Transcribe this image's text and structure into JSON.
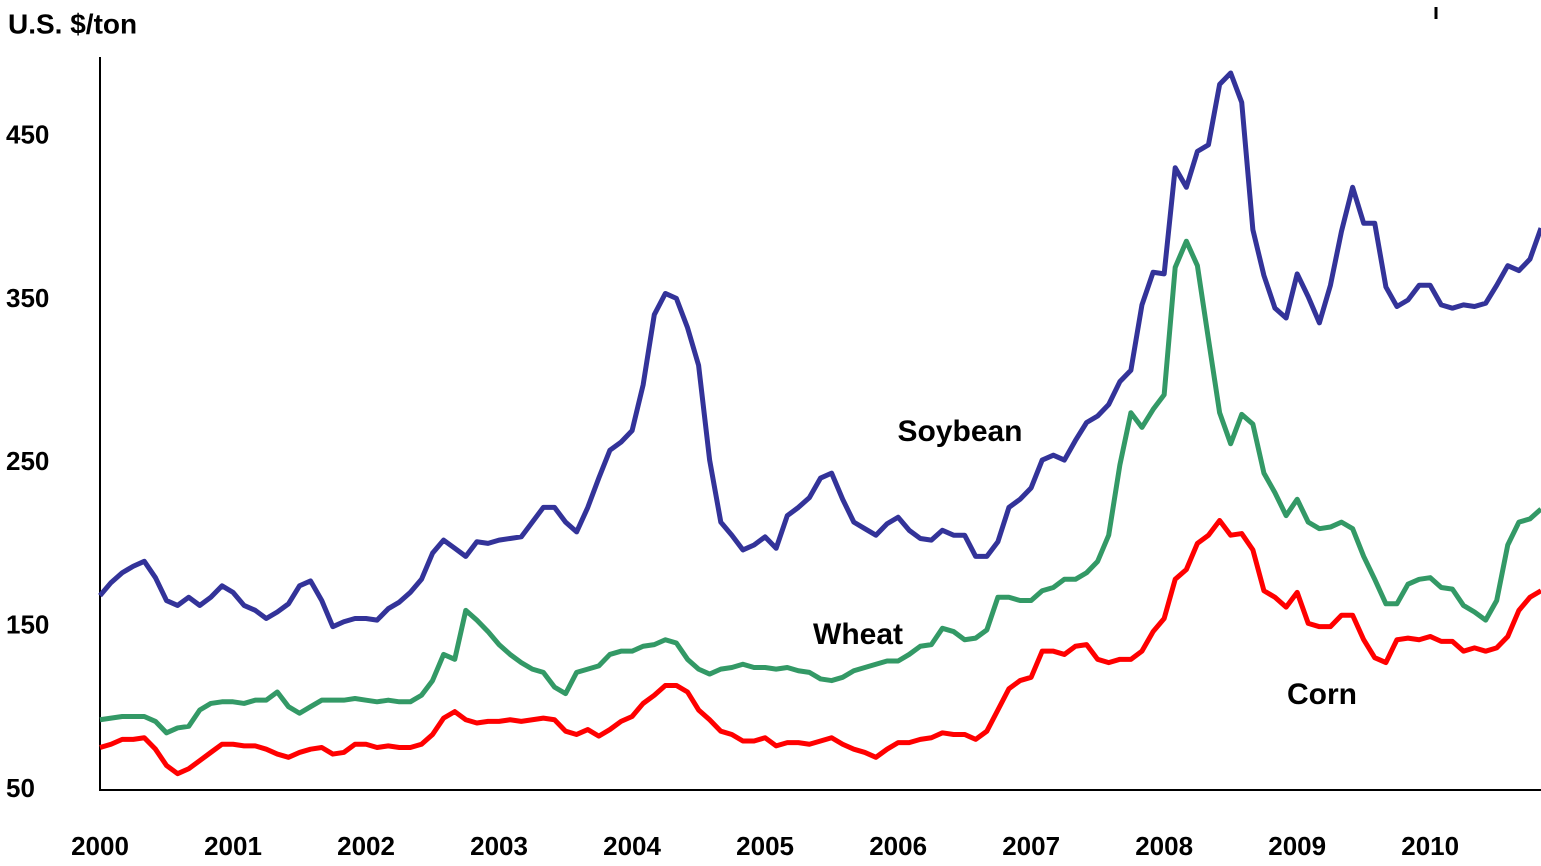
{
  "chart_data": {
    "type": "line",
    "ylabel": "U.S. $/ton",
    "x": [
      2000,
      2000.083,
      2000.167,
      2000.25,
      2000.333,
      2000.417,
      2000.5,
      2000.583,
      2000.667,
      2000.75,
      2000.833,
      2000.917,
      2001,
      2001.083,
      2001.167,
      2001.25,
      2001.333,
      2001.417,
      2001.5,
      2001.583,
      2001.667,
      2001.75,
      2001.833,
      2001.917,
      2002,
      2002.083,
      2002.167,
      2002.25,
      2002.333,
      2002.417,
      2002.5,
      2002.583,
      2002.667,
      2002.75,
      2002.833,
      2002.917,
      2003,
      2003.083,
      2003.167,
      2003.25,
      2003.333,
      2003.417,
      2003.5,
      2003.583,
      2003.667,
      2003.75,
      2003.833,
      2003.917,
      2004,
      2004.083,
      2004.167,
      2004.25,
      2004.333,
      2004.417,
      2004.5,
      2004.583,
      2004.667,
      2004.75,
      2004.833,
      2004.917,
      2005,
      2005.083,
      2005.167,
      2005.25,
      2005.333,
      2005.417,
      2005.5,
      2005.583,
      2005.667,
      2005.75,
      2005.833,
      2005.917,
      2006,
      2006.083,
      2006.167,
      2006.25,
      2006.333,
      2006.417,
      2006.5,
      2006.583,
      2006.667,
      2006.75,
      2006.833,
      2006.917,
      2007,
      2007.083,
      2007.167,
      2007.25,
      2007.333,
      2007.417,
      2007.5,
      2007.583,
      2007.667,
      2007.75,
      2007.833,
      2007.917,
      2008,
      2008.083,
      2008.167,
      2008.25,
      2008.333,
      2008.417,
      2008.5,
      2008.583,
      2008.667,
      2008.75,
      2008.833,
      2008.917,
      2009,
      2009.083,
      2009.167,
      2009.25,
      2009.333,
      2009.417,
      2009.5,
      2009.583,
      2009.667,
      2009.75,
      2009.833,
      2009.917,
      2010,
      2010.083,
      2010.167,
      2010.25,
      2010.333,
      2010.417,
      2010.5,
      2010.583,
      2010.667,
      2010.75,
      2010.833
    ],
    "series": [
      {
        "name": "Soybean",
        "color": "#333399",
        "values": [
          169,
          177,
          183,
          187,
          190,
          180,
          166,
          163,
          168,
          163,
          168,
          175,
          171,
          163,
          160,
          155,
          159,
          164,
          175,
          178,
          166,
          150,
          153,
          155,
          155,
          154,
          161,
          165,
          171,
          179,
          195,
          203,
          198,
          193,
          202,
          201,
          203,
          204,
          205,
          214,
          223,
          223,
          214,
          208,
          223,
          241,
          258,
          263,
          270,
          298,
          341,
          354,
          351,
          333,
          310,
          252,
          214,
          206,
          197,
          200,
          205,
          198,
          218,
          223,
          229,
          241,
          244,
          228,
          214,
          210,
          206,
          213,
          217,
          209,
          204,
          203,
          209,
          206,
          206,
          193,
          193,
          202,
          223,
          228,
          235,
          252,
          255,
          252,
          264,
          275,
          279,
          286,
          300,
          307,
          347,
          367,
          366,
          431,
          419,
          441,
          445,
          482,
          489,
          471,
          393,
          365,
          345,
          339,
          366,
          352,
          336,
          359,
          392,
          419,
          397,
          397,
          358,
          346,
          350,
          359,
          359,
          347,
          345,
          347,
          346,
          348,
          359,
          371,
          368,
          375,
          394
        ]
      },
      {
        "name": "Wheat",
        "color": "#339966",
        "values": [
          93,
          94,
          95,
          95,
          95,
          92,
          85,
          88,
          89,
          99,
          103,
          104,
          104,
          103,
          105,
          105,
          110,
          101,
          97,
          101,
          105,
          105,
          105,
          106,
          105,
          104,
          105,
          104,
          104,
          108,
          117,
          133,
          130,
          160,
          154,
          147,
          139,
          133,
          128,
          124,
          122,
          113,
          109,
          122,
          124,
          126,
          133,
          135,
          135,
          138,
          139,
          142,
          140,
          130,
          124,
          121,
          124,
          125,
          127,
          125,
          125,
          124,
          125,
          123,
          122,
          118,
          117,
          119,
          123,
          125,
          127,
          129,
          129,
          133,
          138,
          139,
          149,
          147,
          142,
          143,
          148,
          168,
          168,
          166,
          166,
          172,
          174,
          179,
          179,
          183,
          190,
          206,
          249,
          281,
          272,
          283,
          292,
          370,
          386,
          371,
          326,
          281,
          262,
          280,
          274,
          244,
          232,
          218,
          228,
          214,
          210,
          211,
          214,
          210,
          193,
          179,
          164,
          164,
          176,
          179,
          180,
          174,
          173,
          163,
          159,
          154,
          166,
          200,
          214,
          216,
          222
        ]
      },
      {
        "name": "Corn",
        "color": "#ff0000",
        "values": [
          76,
          78,
          81,
          81,
          82,
          75,
          65,
          60,
          63,
          68,
          73,
          78,
          78,
          77,
          77,
          75,
          72,
          70,
          73,
          75,
          76,
          72,
          73,
          78,
          78,
          76,
          77,
          76,
          76,
          78,
          84,
          94,
          98,
          93,
          91,
          92,
          92,
          93,
          92,
          93,
          94,
          93,
          86,
          84,
          87,
          83,
          87,
          92,
          95,
          103,
          108,
          114,
          114,
          110,
          99,
          93,
          86,
          84,
          80,
          80,
          82,
          77,
          79,
          79,
          78,
          80,
          82,
          78,
          75,
          73,
          70,
          75,
          79,
          79,
          81,
          82,
          85,
          84,
          84,
          81,
          86,
          99,
          112,
          117,
          119,
          135,
          135,
          133,
          138,
          139,
          130,
          128,
          130,
          130,
          135,
          147,
          155,
          179,
          185,
          201,
          206,
          215,
          206,
          207,
          197,
          172,
          168,
          162,
          171,
          152,
          150,
          150,
          157,
          157,
          142,
          131,
          128,
          142,
          143,
          142,
          144,
          141,
          141,
          135,
          137,
          135,
          137,
          144,
          160,
          168,
          172
        ]
      }
    ],
    "xlim": [
      2000,
      2010.833
    ],
    "xticks": [
      2000,
      2001,
      2002,
      2003,
      2004,
      2005,
      2006,
      2007,
      2008,
      2009,
      2010
    ],
    "ylim": [
      50,
      500
    ],
    "yticks": [
      50,
      150,
      250,
      350,
      450
    ],
    "grid": false
  }
}
